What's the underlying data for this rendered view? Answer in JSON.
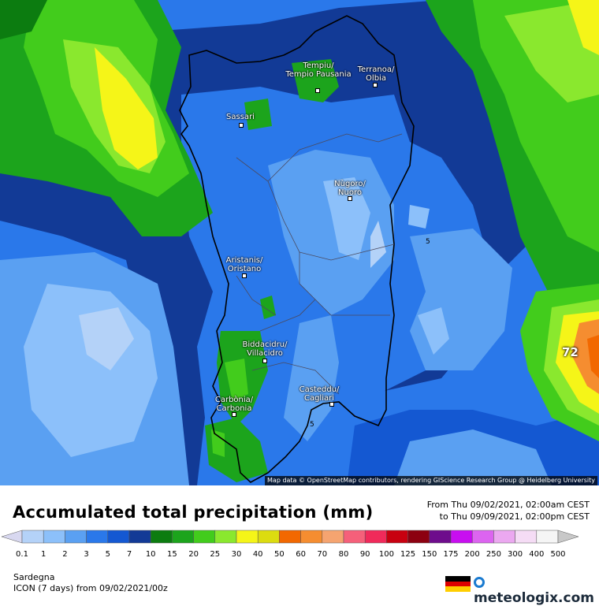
{
  "map": {
    "region_name": "Sardegna",
    "max_value_label": "72",
    "contour_labels": [
      "5",
      "5"
    ],
    "attribution": "Map data © OpenStreetMap contributors, rendering GIScience Research Group @ Heidelberg University",
    "cities": [
      {
        "name": "Tempiu/ Tempio Pausania"
      },
      {
        "name": "Terranoa/ Olbia"
      },
      {
        "name": "Sassari"
      },
      {
        "name": "Nùgoro/ Nuoro"
      },
      {
        "name": "Aristanis/ Oristano"
      },
      {
        "name": "Biddacidru/ Villacidro"
      },
      {
        "name": "Casteddu/ Cagliari"
      },
      {
        "name": "Carbònia/ Carbonia"
      }
    ]
  },
  "legend": {
    "title": "Accumulated total precipitation (mm)",
    "period_from": "From Thu 09/02/2021, 02:00am CEST",
    "period_to": "to Thu 09/09/2021, 02:00pm CEST",
    "ticks": [
      "0.1",
      "1",
      "2",
      "3",
      "5",
      "7",
      "10",
      "15",
      "20",
      "25",
      "30",
      "40",
      "50",
      "60",
      "70",
      "80",
      "90",
      "100",
      "125",
      "150",
      "175",
      "200",
      "250",
      "300",
      "400",
      "500"
    ],
    "colors": [
      "#d8d8f0",
      "#b4d2f8",
      "#8cc0fa",
      "#5aa0f2",
      "#2a78ea",
      "#1458d2",
      "#123a96",
      "#0c7c10",
      "#1ca41c",
      "#42cc1c",
      "#8ae82e",
      "#f5f518",
      "#dcdc10",
      "#f26800",
      "#f58d30",
      "#f5a470",
      "#f5607a",
      "#f02a5a",
      "#c80010",
      "#8c0010",
      "#6e0c8c",
      "#c80ef0",
      "#dc64f0",
      "#eba8f0",
      "#f5dcf5",
      "#f5f5f5",
      "#c8c8c8"
    ],
    "model": "ICON (7 days)  from  09/02/2021/00z",
    "brand": "meteologix.com"
  }
}
